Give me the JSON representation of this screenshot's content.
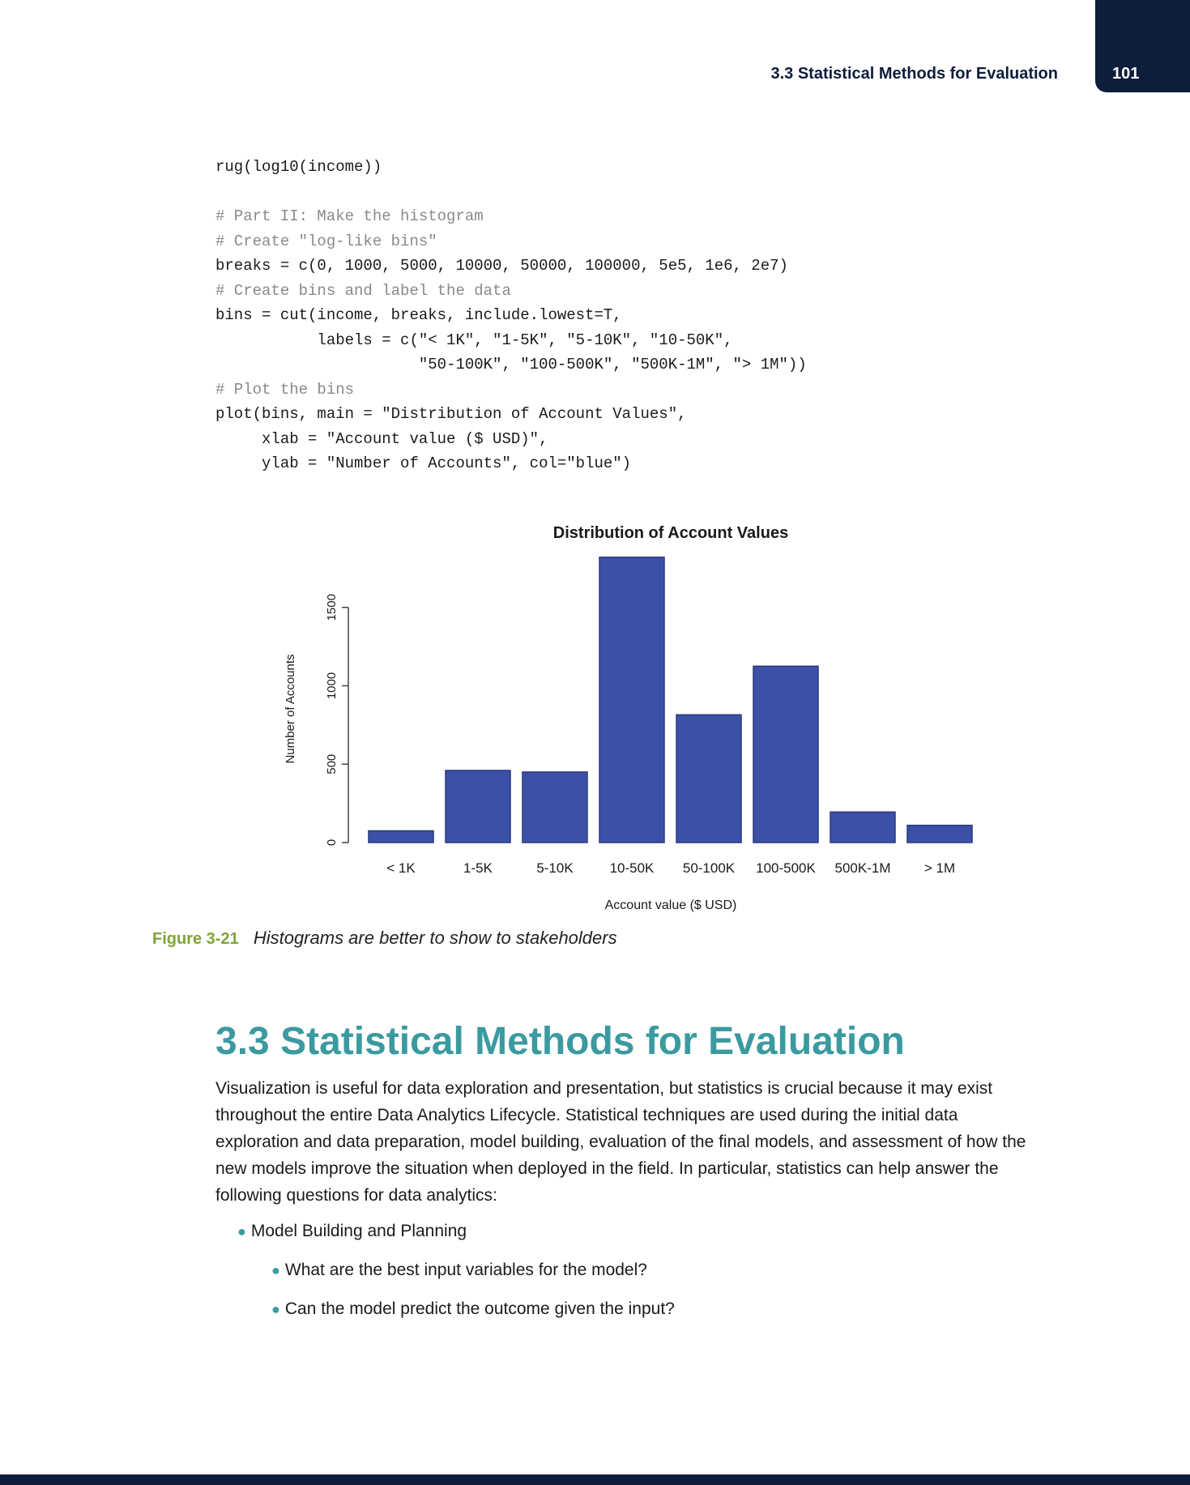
{
  "header": {
    "running_head": "3.3 Statistical Methods for Evaluation",
    "page_number": "101"
  },
  "code_lines": [
    {
      "text": "rug(log10(income))",
      "comment": false
    },
    {
      "text": "",
      "comment": false
    },
    {
      "text": "# Part II: Make the histogram",
      "comment": true
    },
    {
      "text": "# Create \"log-like bins\"",
      "comment": true
    },
    {
      "text": "breaks = c(0, 1000, 5000, 10000, 50000, 100000, 5e5, 1e6, 2e7)",
      "comment": false
    },
    {
      "text": "# Create bins and label the data",
      "comment": true
    },
    {
      "text": "bins = cut(income, breaks, include.lowest=T,",
      "comment": false
    },
    {
      "text": "           labels = c(\"< 1K\", \"1-5K\", \"5-10K\", \"10-50K\",",
      "comment": false
    },
    {
      "text": "                      \"50-100K\", \"100-500K\", \"500K-1M\", \"> 1M\"))",
      "comment": false
    },
    {
      "text": "# Plot the bins",
      "comment": true
    },
    {
      "text": "plot(bins, main = \"Distribution of Account Values\",",
      "comment": false
    },
    {
      "text": "     xlab = \"Account value ($ USD)\",",
      "comment": false
    },
    {
      "text": "     ylab = \"Number of Accounts\", col=\"blue\")",
      "comment": false
    }
  ],
  "chart_data": {
    "type": "bar",
    "title": "Distribution of Account Values",
    "xlabel": "Account value ($ USD)",
    "ylabel": "Number of Accounts",
    "categories": [
      "< 1K",
      "1-5K",
      "5-10K",
      "10-50K",
      "50-100K",
      "100-500K",
      "500K-1M",
      "> 1M"
    ],
    "values": [
      75,
      460,
      450,
      1820,
      815,
      1125,
      195,
      110
    ],
    "yticks": [
      0,
      500,
      1000,
      1500
    ],
    "ylim": [
      0,
      1850
    ],
    "grid": false,
    "bar_color": "#3c50a8",
    "bar_edge_color": "#2a3a80"
  },
  "caption": {
    "label": "Figure 3-21",
    "text": "Histograms are better to show to stakeholders"
  },
  "section": {
    "heading": "3.3 Statistical Methods for Evaluation",
    "paragraph": "Visualization is useful for data exploration and presentation, but statistics is crucial because it may exist throughout the entire Data Analytics Lifecycle. Statistical techniques are used during the initial data exploration and data preparation, model building, evaluation of the final models, and assessment of how the new models improve the situation when deployed in the field. In particular, statistics can help answer the following questions for data analytics:",
    "bullets": [
      {
        "text": "Model Building and Planning",
        "level": 1
      },
      {
        "text": "What are the best input variables for the model?",
        "level": 2
      },
      {
        "text": "Can the model predict the outcome given the input?",
        "level": 2
      }
    ]
  },
  "colors": {
    "accent": "#3a9aa0",
    "navy": "#0d1d3a",
    "figure_label": "#7fa33a"
  }
}
